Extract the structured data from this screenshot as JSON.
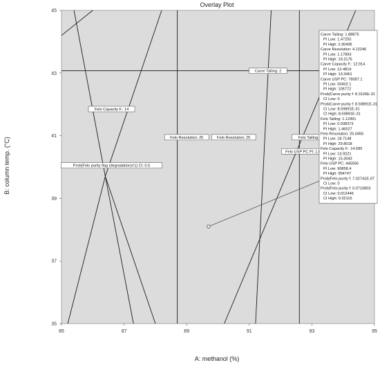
{
  "chart_data": {
    "type": "overlay-contour",
    "title": "Overlay Plot",
    "xlabel": "A: methanol (%)",
    "ylabel": "B: column temp. (°C)",
    "xlim": [
      85,
      95
    ],
    "ylim": [
      35,
      45
    ],
    "x_ticks": [
      "85",
      "87",
      "89",
      "91",
      "93",
      "95"
    ],
    "y_ticks": [
      "35",
      "37",
      "39",
      "41",
      "43",
      "45"
    ],
    "region_fill": "#dcdcdc",
    "line_color": "#1a1a1a",
    "contours": [
      {
        "points": [
          [
            85,
            44.2
          ],
          [
            86.0,
            45
          ]
        ]
      },
      {
        "points": [
          [
            85.4,
            45
          ],
          [
            86.4,
            39.7
          ],
          [
            87.3,
            35
          ]
        ]
      },
      {
        "points": [
          [
            85.2,
            35
          ],
          [
            86.4,
            39.7
          ],
          [
            88.2,
            45
          ]
        ]
      },
      {
        "points": [
          [
            86.4,
            39.7
          ],
          [
            88.0,
            35
          ]
        ]
      },
      {
        "points": [
          [
            88.7,
            35
          ],
          [
            88.7,
            45
          ]
        ]
      },
      {
        "points": [
          [
            91.2,
            35
          ],
          [
            91.7,
            45
          ]
        ]
      },
      {
        "points": [
          [
            92.6,
            35
          ],
          [
            92.6,
            45
          ]
        ]
      },
      {
        "points": [
          [
            90.2,
            35
          ],
          [
            94.4,
            45
          ]
        ]
      },
      {
        "points": [
          [
            85,
            43.07
          ],
          [
            95,
            43.07
          ]
        ]
      }
    ],
    "flags": [
      {
        "text": "Carve Tailing: 2",
        "x": 91.6,
        "y": 43.07
      },
      {
        "text": "Felo Capacity F.: 14",
        "x": 86.6,
        "y": 41.85
      },
      {
        "text": "Felo Resolution: 25",
        "x": 89.0,
        "y": 40.95
      },
      {
        "text": "Felo Resolution: 25",
        "x": 90.5,
        "y": 40.95
      },
      {
        "text": "Felo Tailing: 1.2",
        "x": 93.0,
        "y": 40.95
      },
      {
        "text": "Prob(Felo purity flag (degradation)=1) CI: 0.5",
        "x": 86.6,
        "y": 40.05
      },
      {
        "text": "Felo USP PC PI: 1.06248E+06",
        "x": 93.0,
        "y": 40.5
      }
    ],
    "design_point": {
      "x": 89.7,
      "y": 38.1
    },
    "legend": [
      "Carve Tailing:   1.88875",
      "PI Low:   1.47255",
      "PI High:   2.30495",
      "Carve Resolution:   4.12246",
      "PI Low:   1.17893",
      "PI High:   19.3176",
      "Carve Capacity F.:   12.914",
      "PI Low:   12.4819",
      "PI High:   13.3461",
      "Carve USP PC:   78087.1",
      "PI Low:   50402.1",
      "PI High:   105772",
      "Prob(Carve purity f:   8.3126E-31",
      "CI Low:   0",
      "Prob(Carve purity f:   8.59891E-31",
      "CI Low:   8.59891E-31",
      "CI High:   8.59891E-31",
      "Felo Tailing:   1.12491",
      "PI Low:   0.938373",
      "PI High:   1.46527",
      "Felo Resolution:   25.0455",
      "PI Low:   18.7148",
      "PI High:   29.8018",
      "Felo Capacity F.:   14.585",
      "PI Low:   13.9221",
      "PI High:   15.3043",
      "Felo USP PC:   445556",
      "PI Low:   90858.4",
      "PI High:   954747",
      "Prob(Felo purity f:   7.02741E-07",
      "CI Low:   0",
      "Prob(Felo purity f:   0.0716803",
      "CI Low:   0.012446",
      "CI High:   0.32115"
    ]
  }
}
